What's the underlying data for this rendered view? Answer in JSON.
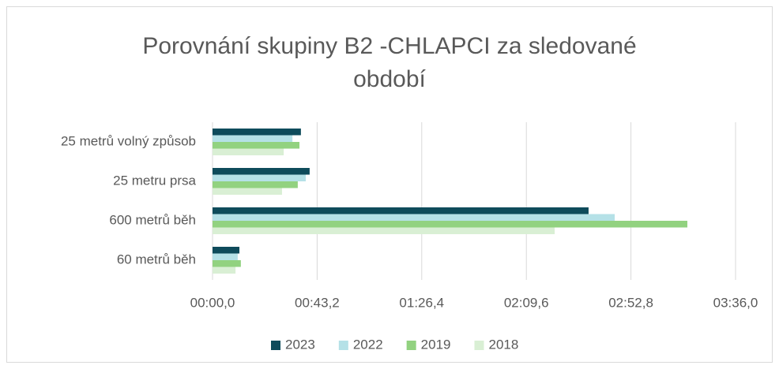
{
  "chart_data": {
    "type": "bar",
    "orientation": "horizontal",
    "title": "Porovnání skupiny B2 -CHLAPCI za sledované období",
    "categories": [
      "25 metrů volný způsob",
      "25 metru prsa",
      "600 metrů běh",
      "60 metrů běh"
    ],
    "series": [
      {
        "name": "2023",
        "color": "#0e4b5b",
        "values": [
          36.5,
          40.1,
          155.3,
          11.1
        ]
      },
      {
        "name": "2022",
        "color": "#b5e1e7",
        "values": [
          33.0,
          38.5,
          166.1,
          10.4
        ]
      },
      {
        "name": "2019",
        "color": "#92d280",
        "values": [
          35.9,
          35.2,
          196.1,
          11.7
        ]
      },
      {
        "name": "2018",
        "color": "#d9efd4",
        "values": [
          29.4,
          28.7,
          141.3,
          9.5
        ]
      }
    ],
    "xlim": [
      0,
      216
    ],
    "xticks": [
      {
        "value": 0,
        "label": "00:00,0"
      },
      {
        "value": 43.2,
        "label": "00:43,2"
      },
      {
        "value": 86.4,
        "label": "01:26,4"
      },
      {
        "value": 129.6,
        "label": "02:09,6"
      },
      {
        "value": 172.8,
        "label": "02:52,8"
      },
      {
        "value": 216,
        "label": "03:36,0"
      }
    ],
    "grid": true,
    "legend": "bottom"
  }
}
